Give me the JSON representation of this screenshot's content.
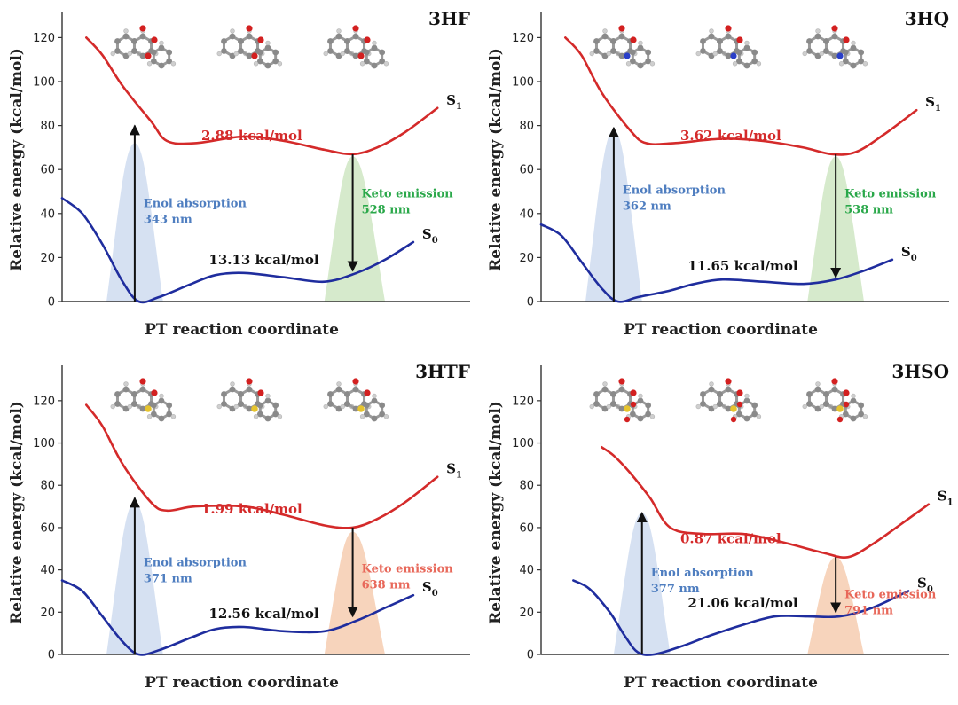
{
  "chart_data": [
    {
      "type": "line",
      "title": "3HF",
      "xlabel": "PT reaction coordinate",
      "ylabel": "Relative energy (kcal/mol)",
      "ylim": [
        0,
        125
      ],
      "yticks": [
        "0",
        "20",
        "40",
        "60",
        "80",
        "100",
        "120"
      ],
      "s1_barrier_label": "2.88 kcal/mol",
      "s0_barrier_label": "13.13 kcal/mol",
      "absorption_label": "Enol absorption",
      "absorption_wavelength": "343 nm",
      "emission_label": "Keto emission",
      "emission_wavelength": "528 nm",
      "emission_color": "#2aa84a",
      "emission_fill": "#cfe6c3",
      "absorption_fill": "#cfdcf0",
      "series": [
        {
          "name": "S1",
          "label_main": "S",
          "label_sub": "1",
          "color": "#d42a2a",
          "x": [
            0.06,
            0.1,
            0.15,
            0.22,
            0.26,
            0.33,
            0.45,
            0.55,
            0.65,
            0.72,
            0.78,
            0.85,
            0.93
          ],
          "y": [
            120,
            112,
            98,
            82,
            73,
            72,
            75,
            73,
            69,
            67,
            70,
            77,
            88
          ]
        },
        {
          "name": "S0",
          "label_main": "S",
          "label_sub": "0",
          "color": "#1f2d9e",
          "x": [
            0,
            0.05,
            0.1,
            0.15,
            0.19,
            0.24,
            0.32,
            0.38,
            0.45,
            0.55,
            0.65,
            0.73,
            0.8,
            0.87
          ],
          "y": [
            47,
            40,
            26,
            9,
            0,
            2,
            8,
            12,
            13,
            11,
            9,
            13,
            19,
            27
          ]
        }
      ],
      "absorption": {
        "x": 0.18,
        "left": 0.11,
        "right": 0.25,
        "peak": 72,
        "arrow_top": 80
      },
      "emission": {
        "x": 0.72,
        "left": 0.65,
        "right": 0.8,
        "peak": 66,
        "arrow_top": 67,
        "arrow_bottom": 14
      }
    },
    {
      "type": "line",
      "title": "3HQ",
      "xlabel": "PT reaction coordinate",
      "ylabel": "Relative energy (kcal/mol)",
      "ylim": [
        0,
        125
      ],
      "yticks": [
        "0",
        "20",
        "40",
        "60",
        "80",
        "100",
        "120"
      ],
      "s1_barrier_label": "3.62 kcal/mol",
      "s0_barrier_label": "11.65 kcal/mol",
      "absorption_label": "Enol absorption",
      "absorption_wavelength": "362 nm",
      "emission_label": "Keto emission",
      "emission_wavelength": "538 nm",
      "emission_color": "#2aa84a",
      "emission_fill": "#cfe6c3",
      "absorption_fill": "#cfdcf0",
      "series": [
        {
          "name": "S1",
          "label_main": "S",
          "label_sub": "1",
          "color": "#d42a2a",
          "x": [
            0.06,
            0.1,
            0.15,
            0.22,
            0.26,
            0.33,
            0.45,
            0.55,
            0.65,
            0.72,
            0.78,
            0.85,
            0.93
          ],
          "y": [
            120,
            112,
            95,
            78,
            72,
            72,
            74,
            73,
            70,
            67,
            68,
            76,
            87
          ]
        },
        {
          "name": "S0",
          "label_main": "S",
          "label_sub": "0",
          "color": "#1f2d9e",
          "x": [
            0,
            0.05,
            0.1,
            0.15,
            0.19,
            0.24,
            0.32,
            0.38,
            0.45,
            0.55,
            0.65,
            0.73,
            0.8,
            0.87
          ],
          "y": [
            35,
            30,
            18,
            6,
            0,
            2,
            5,
            8,
            10,
            9,
            8,
            10,
            14,
            19
          ]
        }
      ],
      "absorption": {
        "x": 0.18,
        "left": 0.11,
        "right": 0.25,
        "peak": 78,
        "arrow_top": 79
      },
      "emission": {
        "x": 0.73,
        "left": 0.66,
        "right": 0.8,
        "peak": 66,
        "arrow_top": 67,
        "arrow_bottom": 11
      }
    },
    {
      "type": "line",
      "title": "3HTF",
      "xlabel": "PT reaction coordinate",
      "ylabel": "Relative energy (kcal/mol)",
      "ylim": [
        0,
        130
      ],
      "yticks": [
        "0",
        "20",
        "40",
        "60",
        "80",
        "100",
        "120"
      ],
      "s1_barrier_label": "1.99 kcal/mol",
      "s0_barrier_label": "12.56 kcal/mol",
      "absorption_label": "Enol absorption",
      "absorption_wavelength": "371 nm",
      "emission_label": "Keto emission",
      "emission_wavelength": "638 nm",
      "emission_color": "#e8685a",
      "emission_fill": "#f6ccb0",
      "absorption_fill": "#cfdcf0",
      "series": [
        {
          "name": "S1",
          "label_main": "S",
          "label_sub": "1",
          "color": "#d42a2a",
          "x": [
            0.06,
            0.1,
            0.15,
            0.22,
            0.26,
            0.33,
            0.45,
            0.55,
            0.65,
            0.72,
            0.78,
            0.85,
            0.93
          ],
          "y": [
            118,
            108,
            90,
            72,
            68,
            70,
            70,
            66,
            61,
            60,
            64,
            72,
            84
          ]
        },
        {
          "name": "S0",
          "label_main": "S",
          "label_sub": "0",
          "color": "#1f2d9e",
          "x": [
            0,
            0.05,
            0.1,
            0.15,
            0.19,
            0.24,
            0.32,
            0.38,
            0.45,
            0.55,
            0.65,
            0.73,
            0.8,
            0.87
          ],
          "y": [
            35,
            30,
            18,
            6,
            0,
            2,
            8,
            12,
            13,
            11,
            11,
            16,
            22,
            28
          ]
        }
      ],
      "absorption": {
        "x": 0.18,
        "left": 0.11,
        "right": 0.25,
        "peak": 72,
        "arrow_top": 74
      },
      "emission": {
        "x": 0.72,
        "left": 0.65,
        "right": 0.8,
        "peak": 58,
        "arrow_top": 60,
        "arrow_bottom": 18
      }
    },
    {
      "type": "line",
      "title": "3HSO",
      "xlabel": "PT reaction coordinate",
      "ylabel": "Relative energy (kcal/mol)",
      "ylim": [
        0,
        130
      ],
      "yticks": [
        "0",
        "20",
        "40",
        "60",
        "80",
        "100",
        "120"
      ],
      "s1_barrier_label": "0.87 kcal/mol",
      "s0_barrier_label": "21.06 kcal/mol",
      "absorption_label": "Enol absorption",
      "absorption_wavelength": "377 nm",
      "emission_label": "Keto emission",
      "emission_wavelength": "791 nm",
      "emission_color": "#e8685a",
      "emission_fill": "#f6ccb0",
      "absorption_fill": "#cfdcf0",
      "series": [
        {
          "name": "S1",
          "label_main": "S",
          "label_sub": "1",
          "color": "#d42a2a",
          "x": [
            0.15,
            0.18,
            0.22,
            0.27,
            0.32,
            0.4,
            0.5,
            0.6,
            0.7,
            0.76,
            0.82,
            0.88,
            0.96
          ],
          "y": [
            98,
            94,
            86,
            74,
            60,
            57,
            57,
            53,
            48,
            46,
            52,
            60,
            71
          ]
        },
        {
          "name": "S0",
          "label_main": "S",
          "label_sub": "0",
          "color": "#1f2d9e",
          "x": [
            0.08,
            0.12,
            0.17,
            0.21,
            0.24,
            0.28,
            0.35,
            0.42,
            0.5,
            0.58,
            0.66,
            0.74,
            0.82,
            0.91
          ],
          "y": [
            35,
            31,
            20,
            8,
            1,
            0,
            4,
            9,
            14,
            18,
            18,
            18,
            22,
            30
          ]
        }
      ],
      "absorption": {
        "x": 0.25,
        "left": 0.18,
        "right": 0.32,
        "peak": 67,
        "arrow_top": 67
      },
      "emission": {
        "x": 0.73,
        "left": 0.66,
        "right": 0.8,
        "peak": 46,
        "arrow_top": 46,
        "arrow_bottom": 20
      }
    }
  ]
}
